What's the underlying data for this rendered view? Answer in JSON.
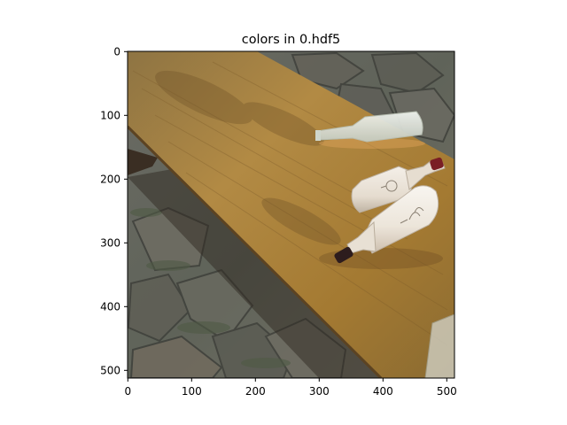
{
  "figure": {
    "title": "colors in 0.hdf5",
    "x_ticks": [
      "0",
      "100",
      "200",
      "300",
      "400",
      "500"
    ],
    "y_ticks": [
      "0",
      "100",
      "200",
      "300",
      "400",
      "500"
    ]
  },
  "image": {
    "description_colors": {
      "table_wood": "#a7843f",
      "table_dark": "#6d5129",
      "stone": "#6f6d63",
      "stone_dark": "#4b4b45",
      "moss": "#53604a",
      "bottle_cream": "#eee7dc",
      "bottle_shadow": "#c9bfb2",
      "bottle_red": "#7a1e24",
      "bottle_dark": "#2d1c1d",
      "glass": "#d9e0d7"
    }
  }
}
